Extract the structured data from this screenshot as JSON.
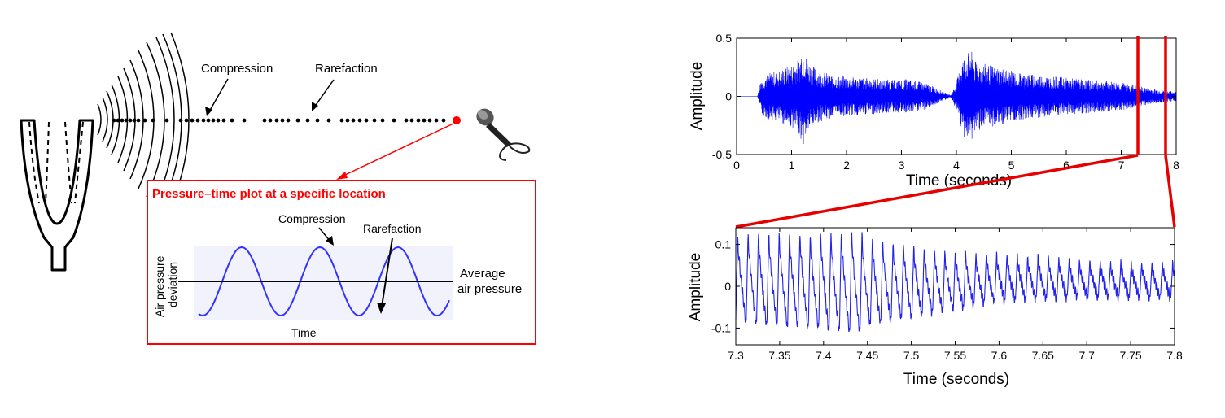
{
  "left_diagram": {
    "compression_label": "Compression",
    "rarefaction_label": "Rarefaction",
    "inset": {
      "title": "Pressure–time plot at a specific location",
      "compression_label": "Compression",
      "rarefaction_label": "Rarefaction",
      "ylabel_line1": "Air pressure",
      "ylabel_line2": "deviation",
      "xlabel": "Time",
      "average_line1": "Average",
      "average_line2": "air pressure"
    },
    "colors": {
      "accent": "#ff0000",
      "wave": "#3333ff",
      "wave_bg": "#f2f2fc",
      "ink": "#000000"
    }
  },
  "chart_data": [
    {
      "type": "line",
      "title": "",
      "xlabel": "Time (seconds)",
      "ylabel": "Amplitude",
      "xlim": [
        0,
        8
      ],
      "ylim": [
        -0.5,
        0.5
      ],
      "x_ticks": [
        "0",
        "1",
        "2",
        "3",
        "4",
        "5",
        "6",
        "7",
        "8"
      ],
      "y_ticks": [
        "-0.5",
        "0",
        "0.5"
      ],
      "series_color": "#0000ff",
      "zoom_window": [
        7.3,
        7.8
      ],
      "series": [
        {
          "envelope_time": [
            0,
            0.38,
            0.45,
            0.6,
            0.8,
            1.0,
            1.15,
            1.2,
            1.3,
            1.5,
            1.8,
            2.0,
            2.3,
            2.6,
            2.9,
            3.1,
            3.4,
            3.6,
            3.8,
            3.9,
            4.0,
            4.1,
            4.25,
            4.35,
            4.5,
            4.8,
            5.0,
            5.2,
            5.6,
            6.0,
            6.5,
            7.0,
            7.2,
            7.5,
            7.8,
            8.0
          ],
          "envelope_amp": [
            0,
            0,
            0.17,
            0.2,
            0.23,
            0.27,
            0.33,
            0.45,
            0.3,
            0.22,
            0.18,
            0.17,
            0.16,
            0.15,
            0.14,
            0.15,
            0.12,
            0.08,
            0.03,
            0.01,
            0.12,
            0.32,
            0.42,
            0.3,
            0.28,
            0.25,
            0.22,
            0.2,
            0.18,
            0.16,
            0.14,
            0.12,
            0.1,
            0.07,
            0.05,
            0.04
          ]
        }
      ]
    },
    {
      "type": "line",
      "title": "",
      "xlabel": "Time (seconds)",
      "ylabel": "Amplitude",
      "xlim": [
        7.3,
        7.8
      ],
      "ylim": [
        -0.14,
        0.14
      ],
      "x_ticks": [
        "7.3",
        "7.35",
        "7.4",
        "7.45",
        "7.5",
        "7.55",
        "7.6",
        "7.65",
        "7.7",
        "7.75",
        "7.8"
      ],
      "y_ticks": [
        "-0.1",
        "0",
        "0.1"
      ],
      "series_color": "#0000ff",
      "series": [
        {
          "period_seconds": 0.0118,
          "peak_time": [
            7.3,
            7.32,
            7.35,
            7.4,
            7.44,
            7.45,
            7.5,
            7.55,
            7.6,
            7.65,
            7.7,
            7.75,
            7.8
          ],
          "peak_amp": [
            0.11,
            0.125,
            0.12,
            0.12,
            0.13,
            0.11,
            0.09,
            0.075,
            0.07,
            0.065,
            0.055,
            0.05,
            0.05
          ],
          "trough_amp": [
            -0.08,
            -0.1,
            -0.1,
            -0.11,
            -0.12,
            -0.1,
            -0.08,
            -0.06,
            -0.04,
            -0.035,
            -0.03,
            -0.03,
            -0.03
          ]
        }
      ]
    }
  ]
}
